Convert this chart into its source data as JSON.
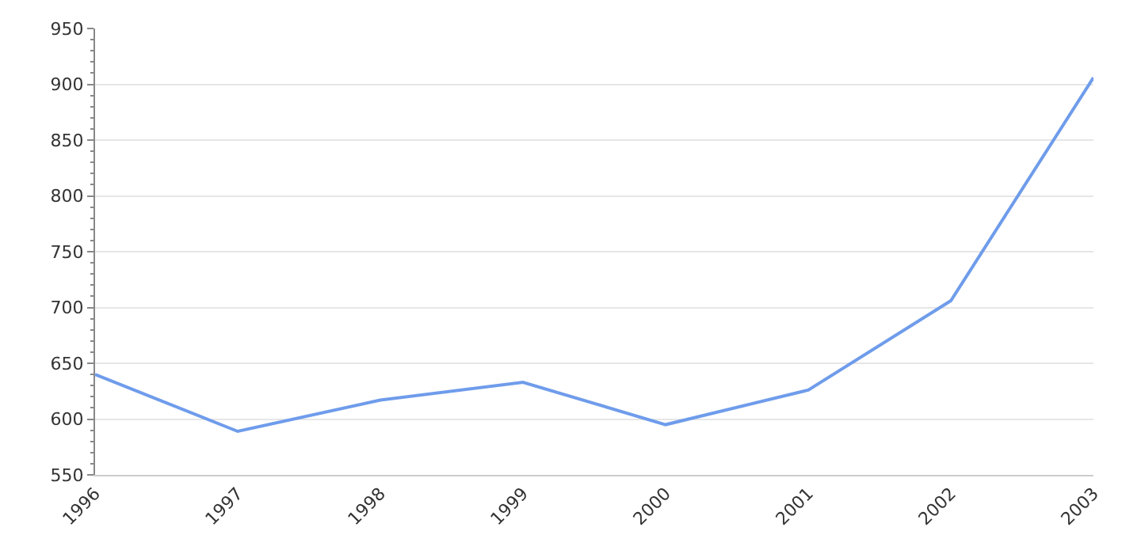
{
  "chart_data": {
    "type": "line",
    "categories": [
      "1996",
      "1997",
      "1998",
      "1999",
      "2000",
      "2001",
      "2002",
      "2003"
    ],
    "series": [
      {
        "color": "#6f9ceb",
        "values": [
          640,
          589,
          617,
          633,
          595,
          626,
          706,
          906
        ]
      }
    ],
    "ylim": [
      550,
      950
    ],
    "yticks": [
      550,
      600,
      650,
      700,
      750,
      800,
      850,
      900,
      950
    ],
    "grid": "y",
    "marker": "none",
    "line_style": "solid"
  }
}
